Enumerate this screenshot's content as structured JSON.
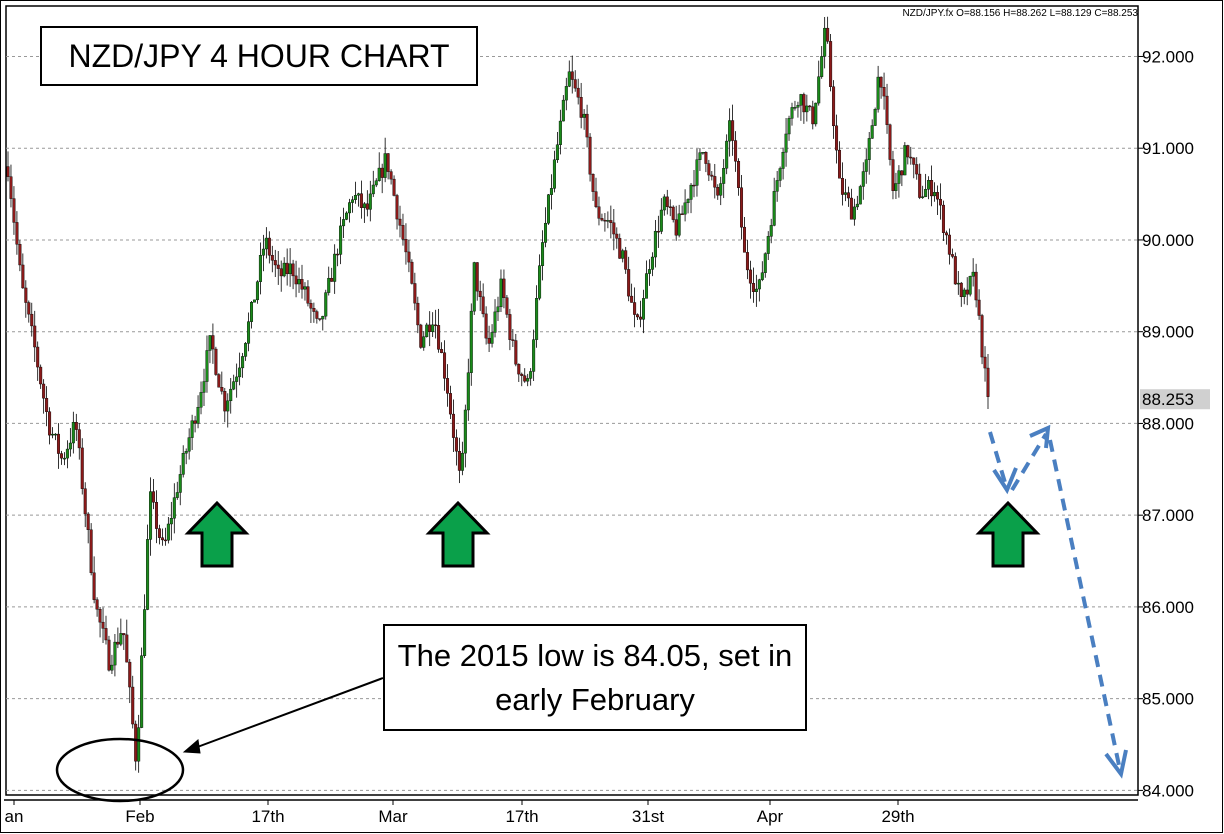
{
  "chart_data": {
    "type": "candlestick",
    "symbol_readout": "NZD/JPY.fx O=88.156 H=88.262 L=88.129 C=88.253",
    "title": "NZD/JPY 4 HOUR CHART",
    "ylim": [
      83.95,
      92.55
    ],
    "y_ticks": [
      "84.000",
      "85.000",
      "86.000",
      "87.000",
      "88.000",
      "89.000",
      "90.000",
      "91.000",
      "92.000"
    ],
    "current_price_label": "88.253",
    "x_tick_labels": [
      "an",
      "Feb",
      "17th",
      "Mar",
      "17th",
      "31st",
      "Apr",
      "29th"
    ],
    "grid": "horizontal dotted",
    "price_path": [
      {
        "x": 0,
        "y": 90.8
      },
      {
        "x": 2,
        "y": 89.5
      },
      {
        "x": 4,
        "y": 88.8
      },
      {
        "x": 6,
        "y": 88.0
      },
      {
        "x": 8,
        "y": 87.6
      },
      {
        "x": 10,
        "y": 88.0
      },
      {
        "x": 13,
        "y": 86.0
      },
      {
        "x": 15,
        "y": 85.4
      },
      {
        "x": 17,
        "y": 85.8
      },
      {
        "x": 19,
        "y": 84.3
      },
      {
        "x": 21,
        "y": 87.2
      },
      {
        "x": 23,
        "y": 86.6
      },
      {
        "x": 25,
        "y": 87.3
      },
      {
        "x": 28,
        "y": 88.2
      },
      {
        "x": 30,
        "y": 88.9
      },
      {
        "x": 32,
        "y": 88.2
      },
      {
        "x": 34,
        "y": 88.6
      },
      {
        "x": 36,
        "y": 89.2
      },
      {
        "x": 38,
        "y": 90.0
      },
      {
        "x": 40,
        "y": 89.6
      },
      {
        "x": 42,
        "y": 89.7
      },
      {
        "x": 44,
        "y": 89.4
      },
      {
        "x": 46,
        "y": 89.0
      },
      {
        "x": 49,
        "y": 90.0
      },
      {
        "x": 51,
        "y": 90.5
      },
      {
        "x": 53,
        "y": 90.3
      },
      {
        "x": 56,
        "y": 90.9
      },
      {
        "x": 59,
        "y": 89.8
      },
      {
        "x": 61,
        "y": 88.9
      },
      {
        "x": 63,
        "y": 89.2
      },
      {
        "x": 65,
        "y": 88.4
      },
      {
        "x": 67,
        "y": 87.3
      },
      {
        "x": 69,
        "y": 89.7
      },
      {
        "x": 71,
        "y": 88.8
      },
      {
        "x": 73,
        "y": 89.5
      },
      {
        "x": 75,
        "y": 88.7
      },
      {
        "x": 77,
        "y": 88.4
      },
      {
        "x": 79,
        "y": 89.9
      },
      {
        "x": 81,
        "y": 90.9
      },
      {
        "x": 83,
        "y": 91.8
      },
      {
        "x": 85,
        "y": 91.4
      },
      {
        "x": 87,
        "y": 90.3
      },
      {
        "x": 89,
        "y": 90.2
      },
      {
        "x": 91,
        "y": 89.8
      },
      {
        "x": 93,
        "y": 89.0
      },
      {
        "x": 95,
        "y": 89.8
      },
      {
        "x": 97,
        "y": 90.4
      },
      {
        "x": 99,
        "y": 90.1
      },
      {
        "x": 101,
        "y": 90.6
      },
      {
        "x": 103,
        "y": 91.0
      },
      {
        "x": 105,
        "y": 90.4
      },
      {
        "x": 107,
        "y": 91.3
      },
      {
        "x": 109,
        "y": 89.8
      },
      {
        "x": 111,
        "y": 89.4
      },
      {
        "x": 113,
        "y": 90.3
      },
      {
        "x": 115,
        "y": 91.2
      },
      {
        "x": 117,
        "y": 91.6
      },
      {
        "x": 119,
        "y": 91.3
      },
      {
        "x": 121,
        "y": 92.3
      },
      {
        "x": 123,
        "y": 90.6
      },
      {
        "x": 125,
        "y": 90.3
      },
      {
        "x": 127,
        "y": 90.8
      },
      {
        "x": 129,
        "y": 91.9
      },
      {
        "x": 131,
        "y": 90.5
      },
      {
        "x": 133,
        "y": 91.0
      },
      {
        "x": 135,
        "y": 90.5
      },
      {
        "x": 137,
        "y": 90.6
      },
      {
        "x": 139,
        "y": 90.0
      },
      {
        "x": 141,
        "y": 89.3
      },
      {
        "x": 143,
        "y": 89.6
      },
      {
        "x": 145,
        "y": 88.2
      }
    ],
    "annotations": {
      "note": "The 2015 low is 84.05, set in early February"
    }
  }
}
